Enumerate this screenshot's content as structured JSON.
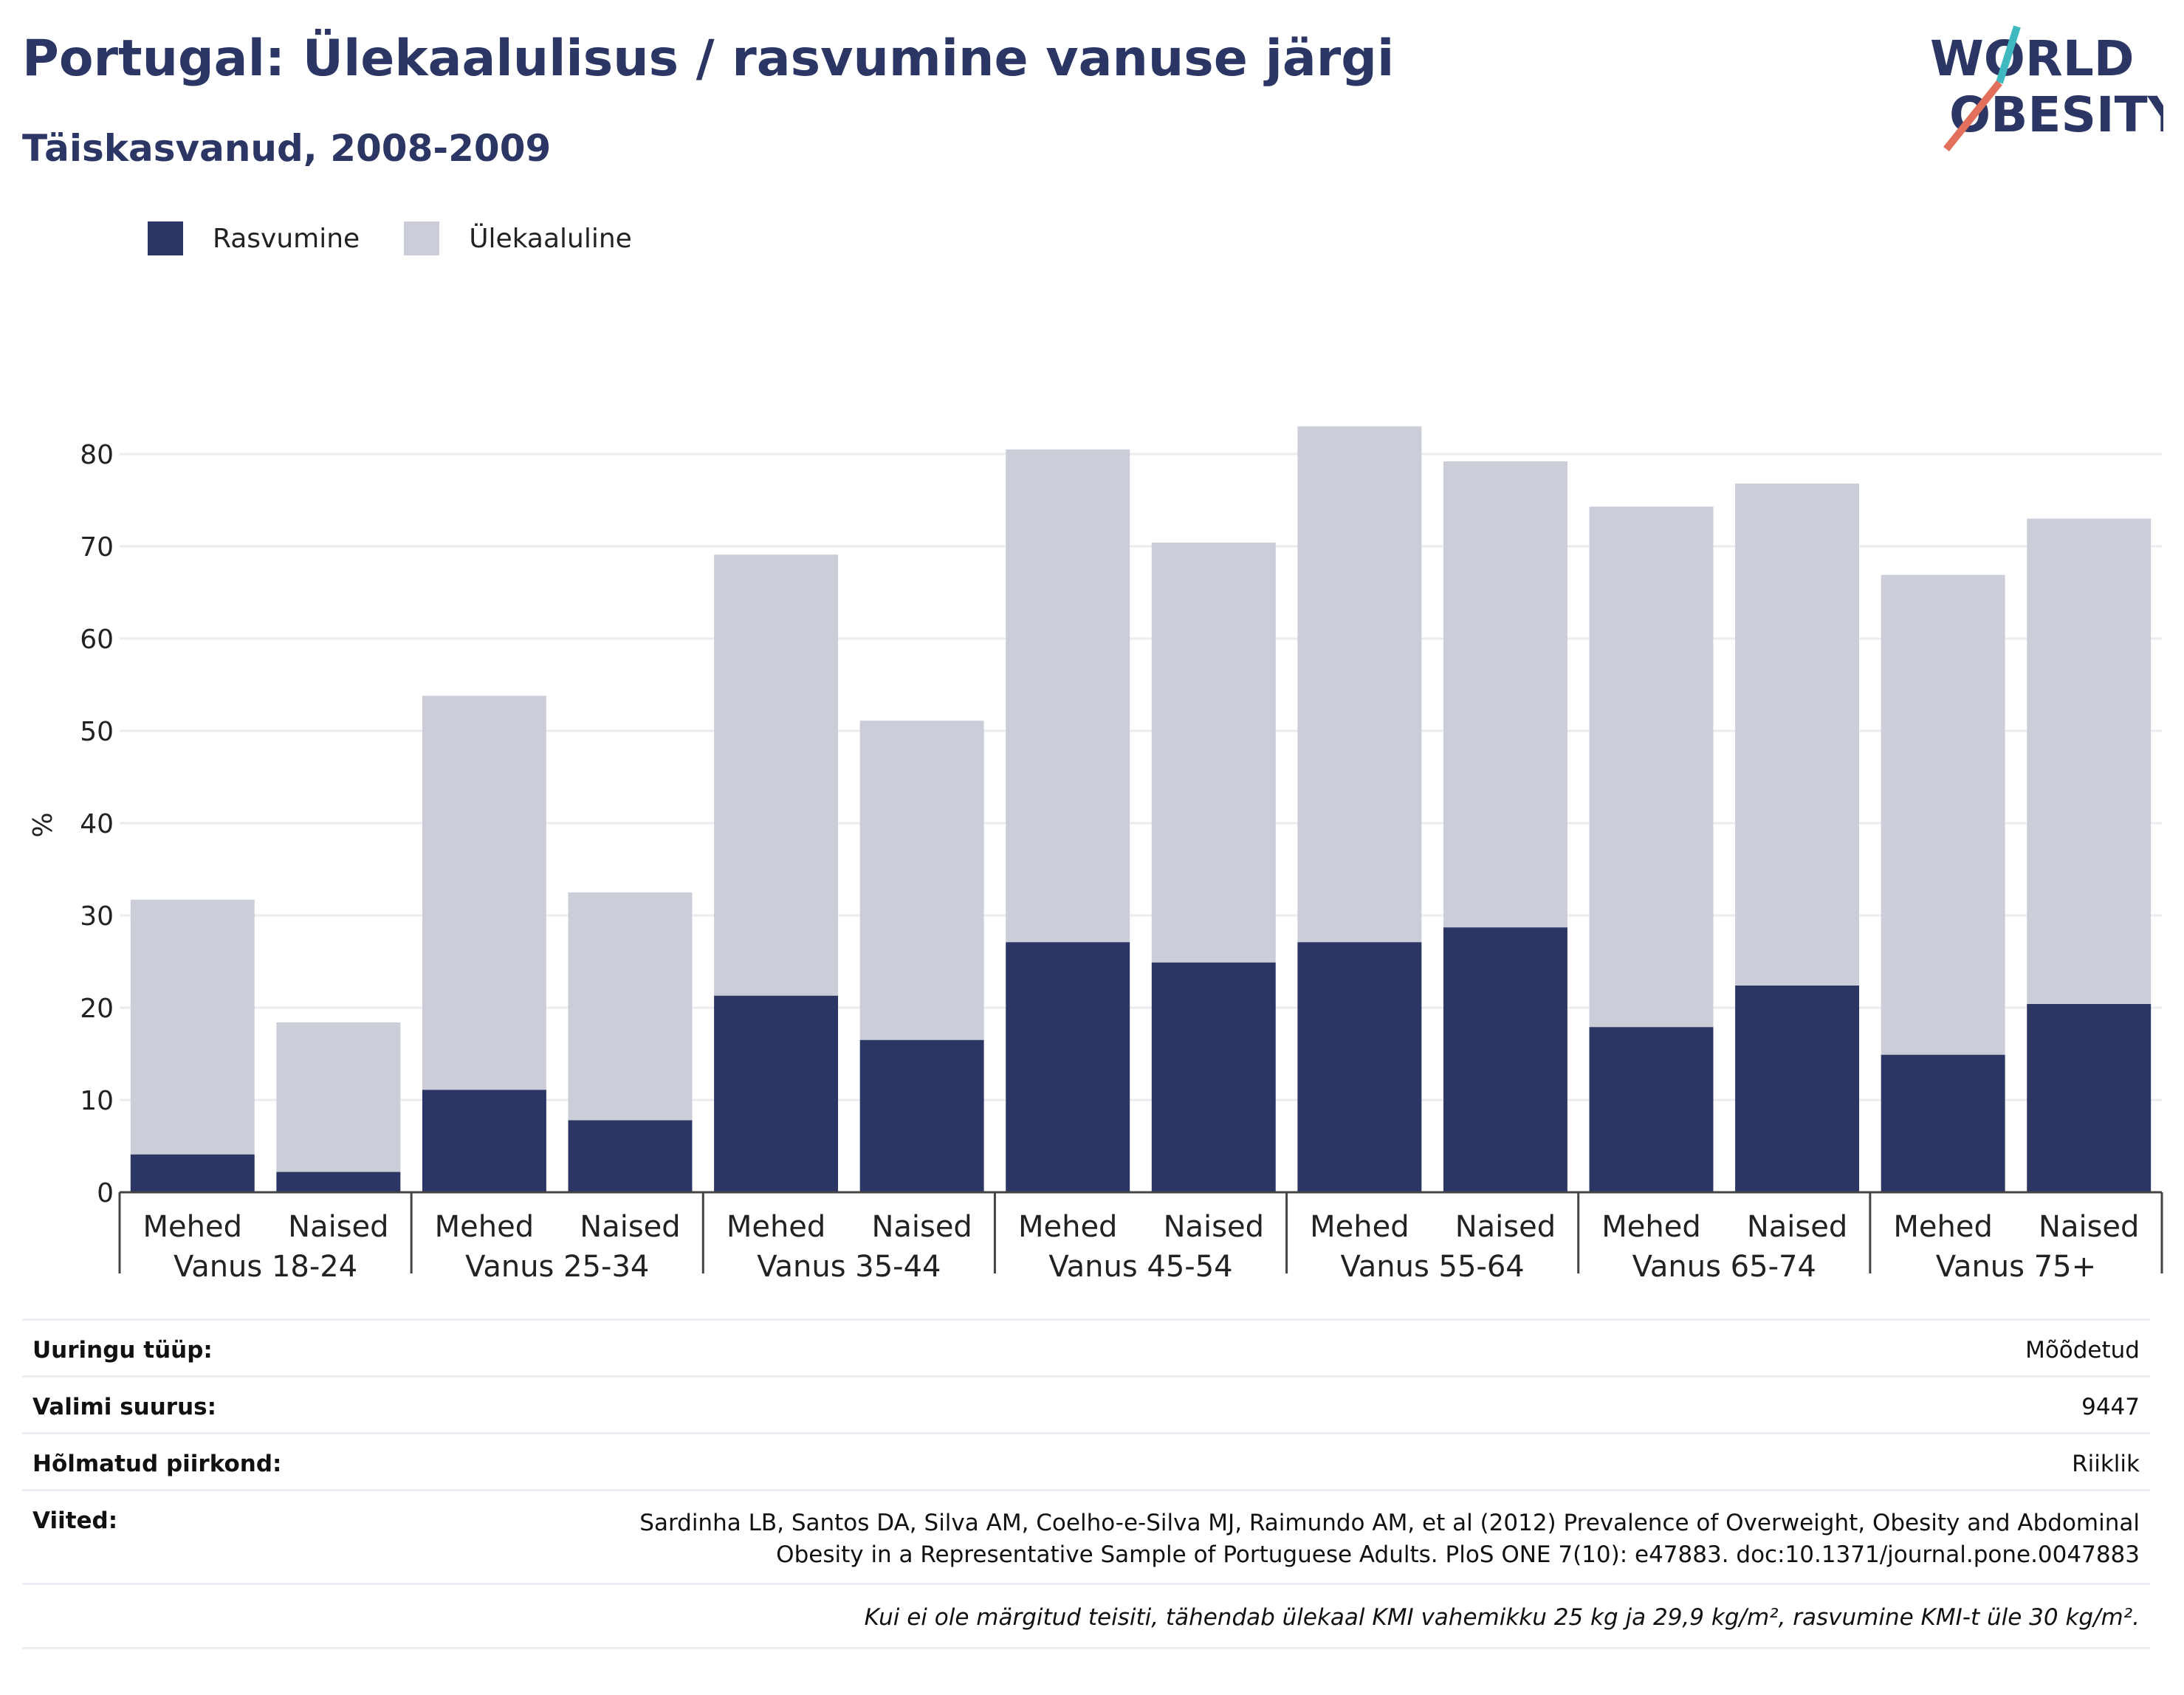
{
  "title": "Portugal: Ülekaalulisus / rasvumine vanuse järgi",
  "subtitle": "Täiskasvanud, 2008-2009",
  "logo": {
    "line1": "WORLD",
    "line2": "OBESITY"
  },
  "colors": {
    "obesity": "#2b3664",
    "overweight": "#cbcdd9",
    "title": "#2b3664",
    "logo_teal": "#3fb8c0",
    "logo_coral": "#e3705c"
  },
  "chart_data": {
    "type": "bar",
    "stacked": true,
    "ylabel": "%",
    "ylim": [
      0,
      86
    ],
    "yticks": [
      0,
      10,
      20,
      30,
      40,
      50,
      60,
      70,
      80
    ],
    "grid": true,
    "legend_position": "top-left",
    "groups": [
      "Vanus 18-24",
      "Vanus 25-34",
      "Vanus 35-44",
      "Vanus 45-54",
      "Vanus 55-64",
      "Vanus 65-74",
      "Vanus 75+"
    ],
    "subcategories": [
      "Mehed",
      "Naised"
    ],
    "series": [
      {
        "name": "Rasvumine",
        "values": [
          4.1,
          2.2,
          11.1,
          7.8,
          21.3,
          16.5,
          27.1,
          24.9,
          27.1,
          28.7,
          17.9,
          22.4,
          14.9,
          20.4
        ]
      },
      {
        "name": "Ülekaaluline",
        "values": [
          27.6,
          16.2,
          42.7,
          24.7,
          47.8,
          34.6,
          53.4,
          45.5,
          55.9,
          50.5,
          56.4,
          54.4,
          52.0,
          52.6
        ]
      }
    ]
  },
  "info": {
    "rows": [
      {
        "key": "Uuringu tüüp:",
        "value": "Mõõdetud"
      },
      {
        "key": "Valimi suurus:",
        "value": "9447"
      },
      {
        "key": "Hõlmatud piirkond:",
        "value": "Riiklik"
      },
      {
        "key": "Viited:",
        "value": "Sardinha LB, Santos DA, Silva AM, Coelho-e-Silva MJ, Raimundo AM, et al (2012) Prevalence of Overweight, Obesity and Abdominal Obesity in a Representative Sample of Portuguese Adults. PloS ONE 7(10): e47883. doc:10.1371/journal.pone.0047883"
      }
    ],
    "footnote": "Kui ei ole märgitud teisiti, tähendab ülekaal KMI vahemikku 25 kg ja 29,9 kg/m², rasvumine KMI-t üle 30 kg/m²."
  }
}
